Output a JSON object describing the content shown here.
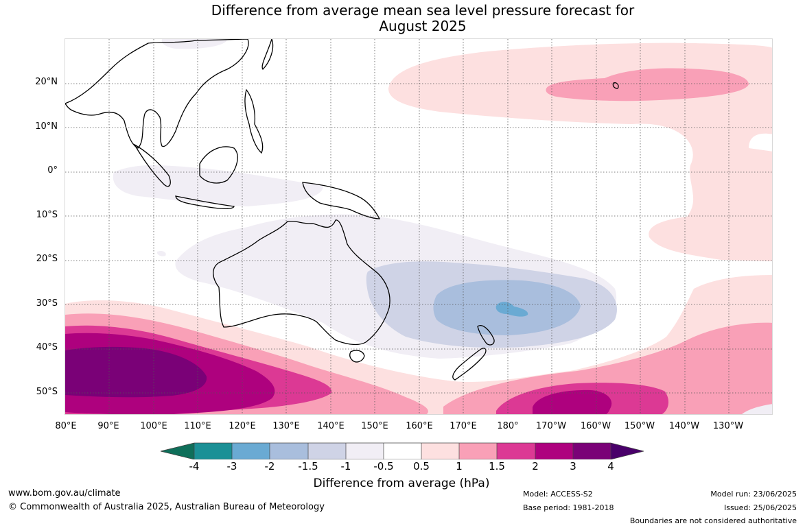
{
  "title": {
    "line1": "Difference from average mean sea level pressure forecast for",
    "line2": "August 2025"
  },
  "map": {
    "lat_labels": [
      "20°N",
      "10°N",
      "0°",
      "10°S",
      "20°S",
      "30°S",
      "40°S",
      "50°S"
    ],
    "lon_labels": [
      "80°E",
      "90°E",
      "100°E",
      "110°E",
      "120°E",
      "130°E",
      "140°E",
      "150°E",
      "160°E",
      "170°E",
      "180°",
      "170°W",
      "160°W",
      "150°W",
      "140°W",
      "130°W"
    ],
    "colors": {
      "neg4": "#0f6f5a",
      "neg3": "#1b9096",
      "neg2": "#6aaad3",
      "neg15": "#a9bedd",
      "neg1": "#cfd3e6",
      "neg05": "#f1eef5",
      "pos05": "#fde0e0",
      "pos1": "#f9a0b7",
      "pos15": "#dc3994",
      "pos2": "#ae017e",
      "pos3": "#7a0177",
      "pos4": "#49006a",
      "land": "#000000",
      "gridline": "#555555"
    }
  },
  "colorbar": {
    "ticks": [
      "-4",
      "-3",
      "-2",
      "-1.5",
      "-1",
      "-0.5",
      "0.5",
      "1",
      "1.5",
      "2",
      "3",
      "4"
    ],
    "label": "Difference from average (hPa)"
  },
  "footer": {
    "url": "www.bom.gov.au/climate",
    "copyright": "© Commonwealth of Australia 2025, Australian Bureau of Meteorology",
    "model": "Model: ACCESS-S2",
    "base_period": "Base period: 1981-2018",
    "model_run": "Model run: 23/06/2025",
    "issued": "Issued: 25/06/2025",
    "disclaimer": "Boundaries are not considered authoritative"
  }
}
